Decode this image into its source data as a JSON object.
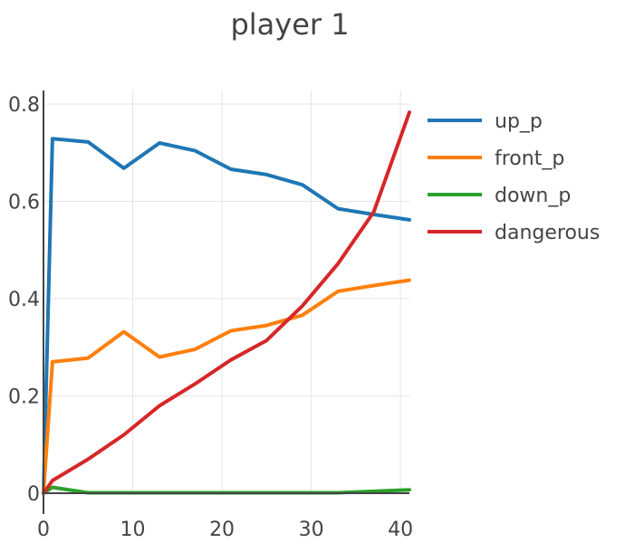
{
  "chart_data": {
    "type": "line",
    "title": "player 1",
    "xlabel": "",
    "ylabel": "",
    "xlim": [
      0,
      41
    ],
    "ylim": [
      0,
      0.8
    ],
    "x_ticks": [
      0,
      10,
      20,
      30,
      40
    ],
    "y_ticks": [
      0,
      0.2,
      0.4,
      0.6,
      0.8
    ],
    "x_tick_labels": [
      "0",
      "10",
      "20",
      "30",
      "40"
    ],
    "y_tick_labels": [
      "0",
      "0.2",
      "0.4",
      "0.6",
      "0.8"
    ],
    "grid": true,
    "legend_position": "right",
    "series": [
      {
        "name": "up_p",
        "color": "#1f77b4",
        "x": [
          0,
          1,
          5,
          9,
          13,
          17,
          21,
          25,
          29,
          33,
          37,
          41
        ],
        "y": [
          0,
          0.729,
          0.722,
          0.668,
          0.72,
          0.704,
          0.666,
          0.655,
          0.634,
          0.585,
          0.573,
          0.562
        ]
      },
      {
        "name": "front_p",
        "color": "#ff7f0e",
        "x": [
          0,
          1,
          5,
          9,
          13,
          17,
          21,
          25,
          29,
          33,
          37,
          41
        ],
        "y": [
          0,
          0.27,
          0.278,
          0.332,
          0.28,
          0.296,
          0.334,
          0.345,
          0.366,
          0.415,
          0.427,
          0.438
        ]
      },
      {
        "name": "down_p",
        "color": "#2ca02c",
        "x": [
          0,
          1,
          5,
          9,
          13,
          17,
          21,
          25,
          29,
          33,
          37,
          41
        ],
        "y": [
          0,
          0.012,
          0.001,
          0.001,
          0.001,
          0.001,
          0.001,
          0.001,
          0.001,
          0.001,
          0.004,
          0.007
        ]
      },
      {
        "name": "dangerous",
        "color": "#d62728",
        "x": [
          0,
          1,
          5,
          9,
          13,
          17,
          21,
          25,
          29,
          33,
          37,
          41
        ],
        "y": [
          0,
          0.026,
          0.07,
          0.12,
          0.18,
          0.225,
          0.274,
          0.314,
          0.385,
          0.472,
          0.578,
          0.783
        ]
      }
    ]
  }
}
